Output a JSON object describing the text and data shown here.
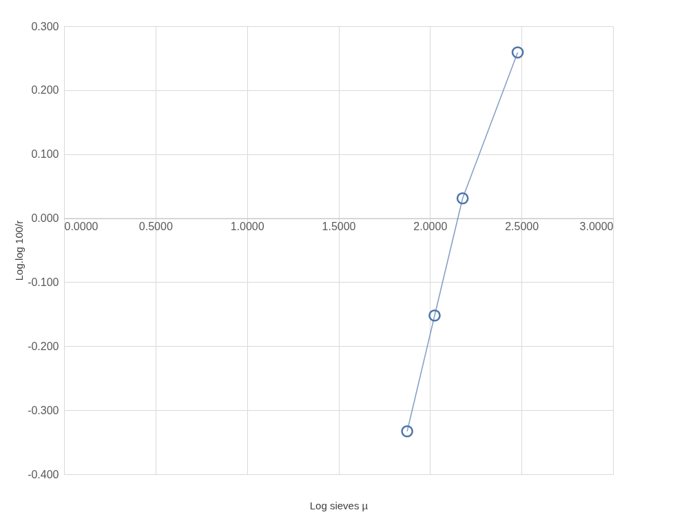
{
  "chart_data": {
    "type": "line",
    "xlabel": "Log sieves µ",
    "ylabel": "Log.log 100/r",
    "x": [
      1.875,
      2.025,
      2.178,
      2.479
    ],
    "series": [
      {
        "color": "#4f74aa",
        "values": [
          -0.333,
          -0.152,
          0.031,
          0.259
        ]
      }
    ],
    "xlim": [
      0,
      3
    ],
    "xticks": [
      {
        "value": 0,
        "label": "0.0000"
      },
      {
        "value": 0.5,
        "label": "0.5000"
      },
      {
        "value": 1,
        "label": "1.0000"
      },
      {
        "value": 1.5,
        "label": "1.5000"
      },
      {
        "value": 2,
        "label": "2.0000"
      },
      {
        "value": 2.5,
        "label": "2.5000"
      },
      {
        "value": 3,
        "label": "3.0000"
      }
    ],
    "ylim": [
      -0.4,
      0.3
    ],
    "yticks": [
      {
        "value": -0.4,
        "label": "-0.400"
      },
      {
        "value": -0.3,
        "label": "-0.300"
      },
      {
        "value": -0.2,
        "label": "-0.200"
      },
      {
        "value": -0.1,
        "label": "-0.100"
      },
      {
        "value": 0,
        "label": "0.000"
      },
      {
        "value": 0.1,
        "label": "0.100"
      },
      {
        "value": 0.2,
        "label": "0.200"
      },
      {
        "value": 0.3,
        "label": "0.300"
      }
    ],
    "grid": true,
    "marker": "circle",
    "legend": false
  }
}
